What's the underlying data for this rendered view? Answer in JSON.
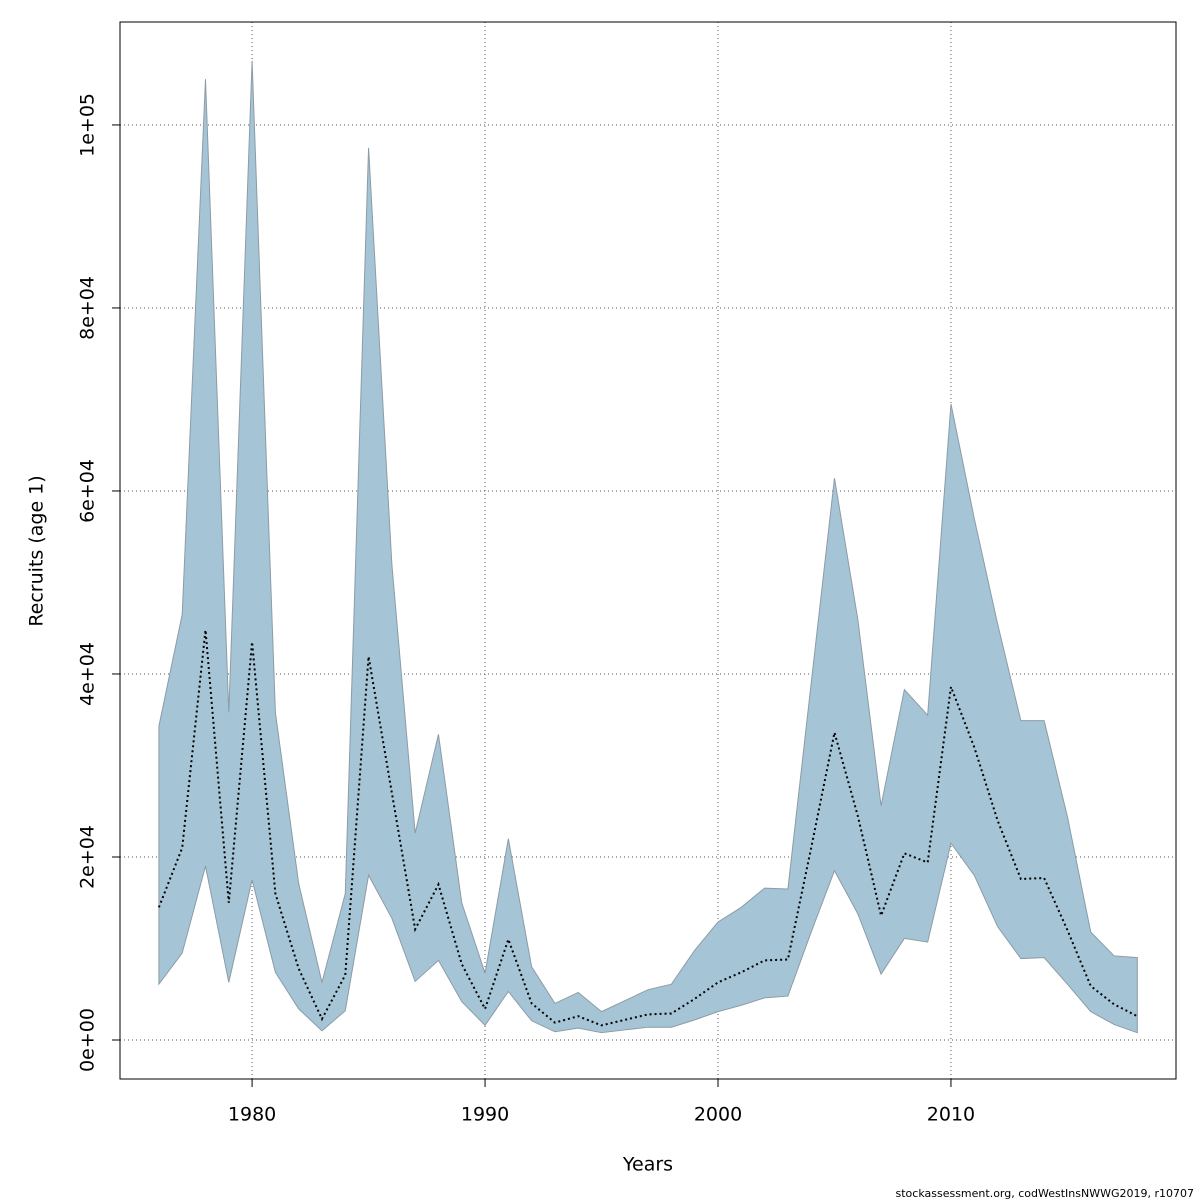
{
  "chart_data": {
    "type": "line",
    "xlabel": "Years",
    "ylabel": "Recruits (age 1)",
    "footer": "stockassessment.org, codWestInsNWWG2019, r10707",
    "x": [
      1976,
      1977,
      1978,
      1979,
      1980,
      1981,
      1982,
      1983,
      1984,
      1985,
      1986,
      1987,
      1988,
      1989,
      1990,
      1991,
      1992,
      1993,
      1994,
      1995,
      1996,
      1997,
      1998,
      1999,
      2000,
      2001,
      2002,
      2003,
      2004,
      2005,
      2006,
      2007,
      2008,
      2009,
      2010,
      2011,
      2012,
      2013,
      2014,
      2015,
      2016,
      2017,
      2018
    ],
    "values": [
      14500,
      21000,
      44800,
      15000,
      43500,
      16000,
      7800,
      2300,
      7100,
      41900,
      27000,
      12100,
      17000,
      8300,
      3400,
      11000,
      4000,
      1900,
      2600,
      1600,
      2200,
      2800,
      2900,
      4500,
      6300,
      7400,
      8700,
      8800,
      21000,
      33600,
      24500,
      13600,
      20400,
      19400,
      38600,
      32000,
      24000,
      17600,
      17700,
      12000,
      5900,
      3900,
      2600
    ],
    "lower": [
      6100,
      9500,
      19000,
      6300,
      17500,
      7400,
      3400,
      1000,
      3200,
      18000,
      13300,
      6400,
      8700,
      4200,
      1600,
      5300,
      2100,
      900,
      1300,
      800,
      1100,
      1400,
      1400,
      2200,
      3100,
      3800,
      4600,
      4800,
      11800,
      18500,
      13800,
      7200,
      11100,
      10700,
      21500,
      18000,
      12400,
      8900,
      9000,
      6100,
      3100,
      1700,
      800
    ],
    "upper": [
      34300,
      46500,
      105000,
      35800,
      107000,
      35800,
      17100,
      6300,
      16000,
      97500,
      52000,
      22600,
      33400,
      15000,
      7300,
      22000,
      8000,
      4000,
      5200,
      3100,
      4300,
      5500,
      6100,
      9800,
      12900,
      14500,
      16600,
      16500,
      39000,
      61400,
      46000,
      25600,
      38300,
      35500,
      69500,
      57000,
      45500,
      34900,
      34900,
      24400,
      11800,
      9200,
      9000
    ],
    "color": "#000000",
    "band_color": "#a5c4d5",
    "band_edge": "#8c9ca6",
    "xlim": [
      1974.33,
      2019.66
    ],
    "ylim": [
      -4262,
      111250
    ],
    "xticks": [
      1980,
      1990,
      2000,
      2010
    ],
    "yticks": [
      {
        "value": 0,
        "label": "0e+00"
      },
      {
        "value": 20000,
        "label": "2e+04"
      },
      {
        "value": 40000,
        "label": "4e+04"
      },
      {
        "value": 60000,
        "label": "6e+04"
      },
      {
        "value": 80000,
        "label": "8e+04"
      },
      {
        "value": 100000,
        "label": "1e+05"
      }
    ],
    "grid": true
  }
}
